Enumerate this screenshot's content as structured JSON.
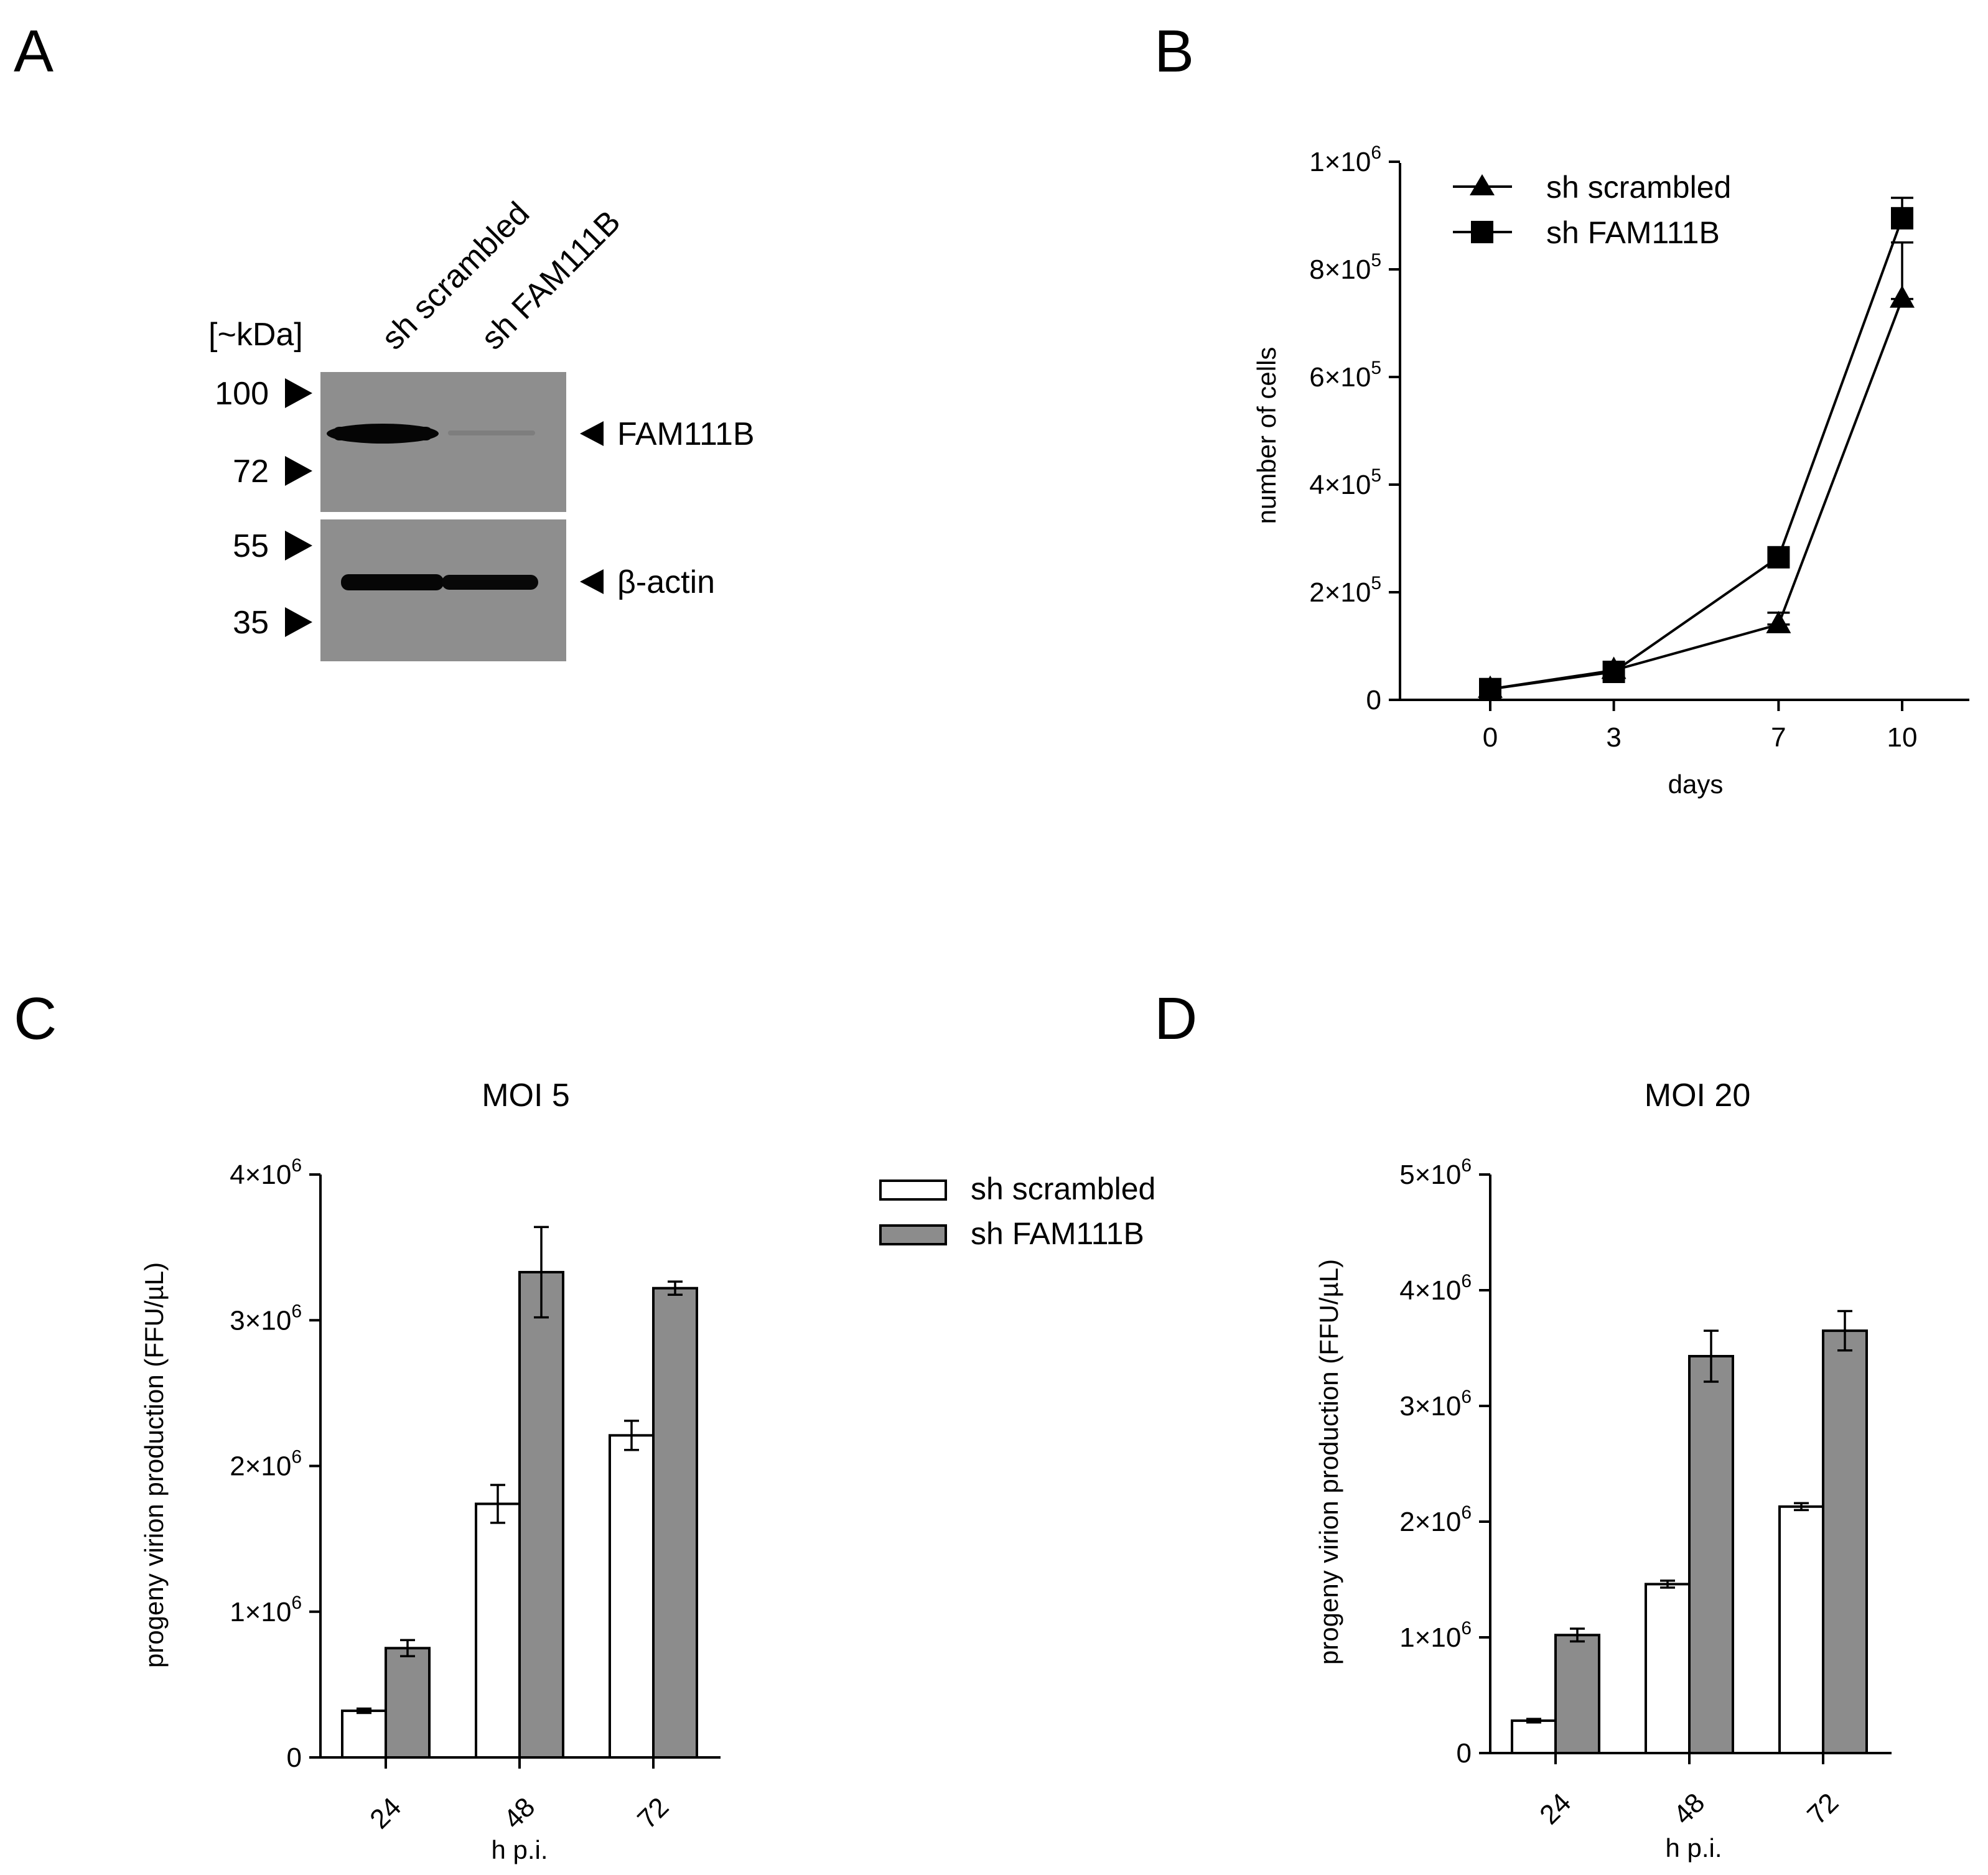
{
  "panels": {
    "A": "A",
    "B": "B",
    "C": "C",
    "D": "D"
  },
  "western_blot": {
    "unit_label": "[~kDa]",
    "lanes": [
      "sh scrambled",
      "sh FAM111B"
    ],
    "markers": [
      "100",
      "72",
      "55",
      "35"
    ],
    "bands": [
      "FAM111B",
      "β-actin"
    ],
    "colors": {
      "membrane": "#8e8e8e",
      "band": "#000000"
    }
  },
  "chart_data": [
    {
      "panel": "B",
      "type": "line",
      "xlabel": "days",
      "ylabel": "number of cells",
      "x": [
        0,
        3,
        7,
        10
      ],
      "xticks": [
        "0",
        "3",
        "7",
        "10"
      ],
      "yticks": [
        {
          "value": 0,
          "base": "0",
          "exp": ""
        },
        {
          "value": 200000,
          "base": "2×10",
          "exp": "5"
        },
        {
          "value": 400000,
          "base": "4×10",
          "exp": "5"
        },
        {
          "value": 600000,
          "base": "6×10",
          "exp": "5"
        },
        {
          "value": 800000,
          "base": "8×10",
          "exp": "5"
        },
        {
          "value": 1000000,
          "base": "1×10",
          "exp": "6"
        }
      ],
      "ylim": [
        0,
        1000000
      ],
      "legend_position": "top-left",
      "series": [
        {
          "name": "sh scrambled",
          "marker": "triangle",
          "values": [
            20000,
            55000,
            140000,
            745000
          ],
          "errors": [
            3000,
            5000,
            22000,
            105000
          ]
        },
        {
          "name": "sh FAM111B",
          "marker": "square",
          "values": [
            20000,
            52000,
            265000,
            895000
          ],
          "errors": [
            3000,
            5000,
            8000,
            38000
          ]
        }
      ]
    },
    {
      "panel": "C",
      "type": "bar",
      "title": "MOI 5",
      "xlabel": "h p.i.",
      "ylabel": "progeny virion production (FFU/µL)",
      "categories": [
        "24",
        "48",
        "72"
      ],
      "yticks": [
        {
          "value": 0,
          "base": "0",
          "exp": ""
        },
        {
          "value": 1000000,
          "base": "1×10",
          "exp": "6"
        },
        {
          "value": 2000000,
          "base": "2×10",
          "exp": "6"
        },
        {
          "value": 3000000,
          "base": "3×10",
          "exp": "6"
        },
        {
          "value": 4000000,
          "base": "4×10",
          "exp": "6"
        }
      ],
      "ylim": [
        0,
        4000000
      ],
      "series": [
        {
          "name": "sh scrambled",
          "color": "#ffffff",
          "values": [
            320000,
            1740000,
            2210000
          ],
          "errors": [
            15000,
            130000,
            100000
          ]
        },
        {
          "name": "sh FAM111B",
          "color": "#8c8c8c",
          "values": [
            750000,
            3330000,
            3220000
          ],
          "errors": [
            55000,
            310000,
            45000
          ]
        }
      ]
    },
    {
      "panel": "D",
      "type": "bar",
      "title": "MOI 20",
      "xlabel": "h p.i.",
      "ylabel": "progeny virion production (FFU/µL)",
      "categories": [
        "24",
        "48",
        "72"
      ],
      "yticks": [
        {
          "value": 0,
          "base": "0",
          "exp": ""
        },
        {
          "value": 1000000,
          "base": "1×10",
          "exp": "6"
        },
        {
          "value": 2000000,
          "base": "2×10",
          "exp": "6"
        },
        {
          "value": 3000000,
          "base": "3×10",
          "exp": "6"
        },
        {
          "value": 4000000,
          "base": "4×10",
          "exp": "6"
        },
        {
          "value": 5000000,
          "base": "5×10",
          "exp": "6"
        }
      ],
      "ylim": [
        0,
        5000000
      ],
      "series": [
        {
          "name": "sh scrambled",
          "color": "#ffffff",
          "values": [
            280000,
            1460000,
            2130000
          ],
          "errors": [
            15000,
            30000,
            30000
          ]
        },
        {
          "name": "sh FAM111B",
          "color": "#8c8c8c",
          "values": [
            1020000,
            3430000,
            3650000
          ],
          "errors": [
            55000,
            220000,
            170000
          ]
        }
      ]
    }
  ],
  "bar_legend": {
    "items": [
      {
        "label": "sh scrambled",
        "color": "#ffffff"
      },
      {
        "label": "sh FAM111B",
        "color": "#8c8c8c"
      }
    ]
  }
}
